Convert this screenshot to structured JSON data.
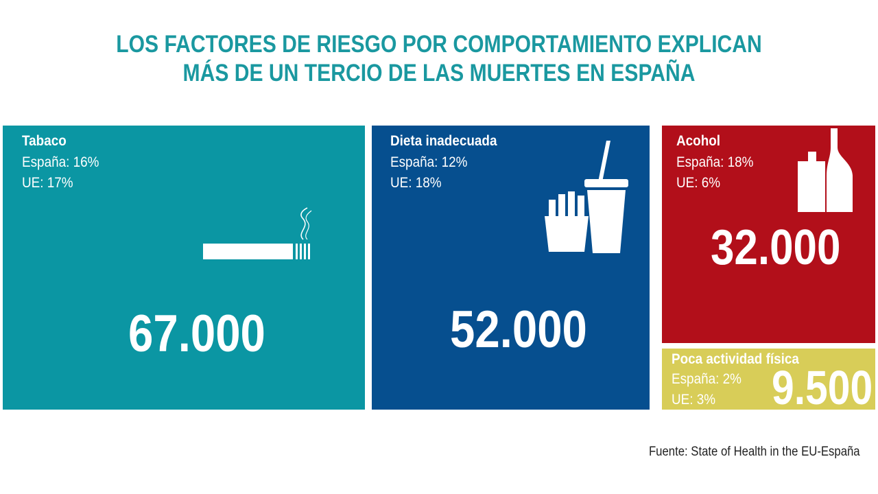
{
  "title": {
    "line1": "LOS FACTORES DE RIESGO POR COMPORTAMIENTO EXPLICAN",
    "line2": "MÁS DE UN TERCIO DE LAS MUERTES EN ESPAÑA"
  },
  "colors": {
    "title": "#1a98a0",
    "tabaco": "#0b96a3",
    "dieta": "#064f8f",
    "alcohol": "#b20f1a",
    "actividad": "#d8cd58"
  },
  "icons": {
    "tabaco": "cigarette-icon",
    "dieta": "fries-and-drink-icon",
    "alcohol": "bottles-icon"
  },
  "chart_data": {
    "type": "table",
    "columns": [
      "factor",
      "espana",
      "ue",
      "muertes"
    ],
    "factors": [
      {
        "name": "Tabaco",
        "espana_label": "España: 16%",
        "ue_label": "UE: 17%",
        "espana": 16,
        "ue": 17,
        "deaths": 67000,
        "deaths_label": "67.000"
      },
      {
        "name": "Dieta inadecuada",
        "espana_label": "España: 12%",
        "ue_label": "UE: 18%",
        "espana": 12,
        "ue": 18,
        "deaths": 52000,
        "deaths_label": "52.000"
      },
      {
        "name": "Acohol",
        "espana_label": "España: 18%",
        "ue_label": "UE: 6%",
        "espana": 18,
        "ue": 6,
        "deaths": 32000,
        "deaths_label": "32.000"
      },
      {
        "name": "Poca actividad física",
        "espana_label": "España: 2%",
        "ue_label": "UE: 3%",
        "espana": 2,
        "ue": 3,
        "deaths": 9500,
        "deaths_label": "9.500"
      }
    ]
  },
  "source": "Fuente: State of Health in the EU-España"
}
